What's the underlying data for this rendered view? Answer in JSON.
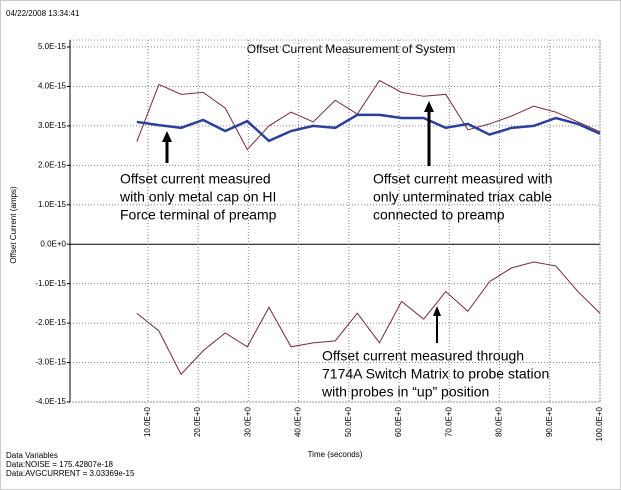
{
  "chart_data": {
    "type": "line",
    "timestamp": "04/22/2008 13:34:41",
    "title": "Offset Current Measurement of System",
    "xlabel": "Time (seconds)",
    "ylabel": "Offset Current (amps)",
    "annotations": [
      [
        "Offset current measured",
        "with only metal cap on HI",
        "Force terminal of preamp"
      ],
      [
        "Offset current measured with",
        "only unterminated triax cable",
        "connected to preamp"
      ],
      [
        "Offset current measured through",
        "7174A Switch Matrix to probe station",
        "with probes in “up” position"
      ]
    ],
    "footer": [
      "Data Variables",
      "Data:NOISE = 175.42807e-18",
      "Data:AVGCURRENT = 3.03369e-15"
    ],
    "x": [
      7.8,
      12.2,
      16.6,
      21.0,
      25.4,
      29.8,
      34.1,
      38.5,
      42.9,
      47.3,
      51.7,
      56.1,
      60.5,
      64.9,
      69.3,
      73.7,
      78.0,
      82.4,
      86.8,
      91.2,
      95.6,
      100.0
    ],
    "series": [
      {
        "color": "#7b2a3a",
        "width": 1,
        "values": [
          2.6e-15,
          4.05e-15,
          3.8e-15,
          3.85e-15,
          3.45e-15,
          2.4e-15,
          3e-15,
          3.35e-15,
          3.1e-15,
          3.65e-15,
          3.3e-15,
          4.15e-15,
          3.85e-15,
          3.75e-15,
          3.8e-15,
          2.9e-15,
          3.05e-15,
          3.25e-15,
          3.5e-15,
          3.35e-15,
          3.1e-15,
          2.85e-15
        ]
      },
      {
        "color": "#2b3f9c",
        "width": 2.5,
        "values": [
          3.1e-15,
          3.02e-15,
          2.95e-15,
          3.15e-15,
          2.87e-15,
          3.12e-15,
          2.62e-15,
          2.87e-15,
          3e-15,
          2.95e-15,
          3.28e-15,
          3.28e-15,
          3.2e-15,
          3.2e-15,
          2.95e-15,
          3.05e-15,
          2.78e-15,
          2.95e-15,
          3e-15,
          3.2e-15,
          3.05e-15,
          2.8e-15
        ]
      },
      {
        "color": "#7b2a3a",
        "width": 1,
        "values": [
          -1.75e-15,
          -2.2e-15,
          -3.3e-15,
          -2.7e-15,
          -2.25e-15,
          -2.6e-15,
          -1.6e-15,
          -2.6e-15,
          -2.5e-15,
          -2.45e-15,
          -1.75e-15,
          -2.5e-15,
          -1.45e-15,
          -1.9e-15,
          -1.2e-15,
          -1.7e-15,
          -9.5e-16,
          -6e-16,
          -4.5e-16,
          -5.5e-16,
          -1.2e-15,
          -1.75e-15
        ]
      }
    ],
    "xlim": [
      -5.5,
      100
    ],
    "xticks": [
      {
        "value": 10,
        "label": "10.0E+0"
      },
      {
        "value": 20,
        "label": "20.0E+0"
      },
      {
        "value": 30,
        "label": "30.0E+0"
      },
      {
        "value": 40,
        "label": "40.0E+0"
      },
      {
        "value": 50,
        "label": "50.0E+0"
      },
      {
        "value": 60,
        "label": "60.0E+0"
      },
      {
        "value": 70,
        "label": "70.0E+0"
      },
      {
        "value": 80,
        "label": "80.0E+0"
      },
      {
        "value": 90,
        "label": "90.0E+0"
      },
      {
        "value": 100,
        "label": "100.0E+0"
      }
    ],
    "ylim": [
      -4e-15,
      5e-15
    ],
    "yticks": [
      {
        "value": 5e-15,
        "label": "5.0E-15"
      },
      {
        "value": 4e-15,
        "label": "4.0E-15"
      },
      {
        "value": 3e-15,
        "label": "3.0E-15"
      },
      {
        "value": 2e-15,
        "label": "2.0E-15"
      },
      {
        "value": 1e-15,
        "label": "1.0E-15"
      },
      {
        "value": 0,
        "label": "0.0E+0"
      },
      {
        "value": -1e-15,
        "label": "-1.0E-15"
      },
      {
        "value": -2e-15,
        "label": "-2.0E-15"
      },
      {
        "value": -3e-15,
        "label": "-3.0E-15"
      },
      {
        "value": -4e-15,
        "label": "-4.0E-15"
      }
    ],
    "grid": true
  }
}
